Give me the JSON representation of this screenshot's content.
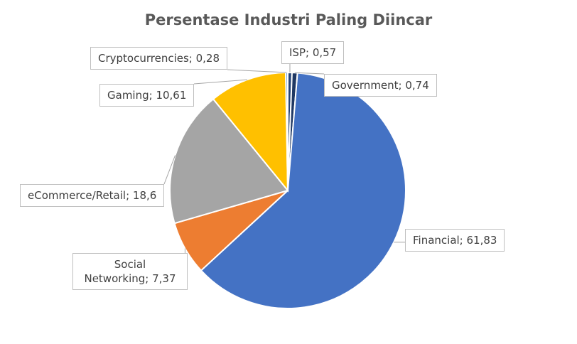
{
  "chart_data": {
    "type": "pie",
    "title": "Persentase Industri Paling Diincar",
    "values": [
      0.57,
      0.74,
      61.83,
      7.37,
      18.6,
      10.61,
      0.28
    ],
    "value_labels": [
      "ISP; 0,57",
      "Government; 0,74",
      "Financial; 61,83",
      "Social Networking; 7,37",
      "eCommerce/Retail; 18,6",
      "Gaming; 10,61",
      "Cryptocurrencies; 0,28"
    ],
    "colors": [
      "#264478",
      "#1f3864",
      "#4472c4",
      "#ed7d31",
      "#a5a5a5",
      "#ffc000",
      "#5b9bd5"
    ]
  }
}
